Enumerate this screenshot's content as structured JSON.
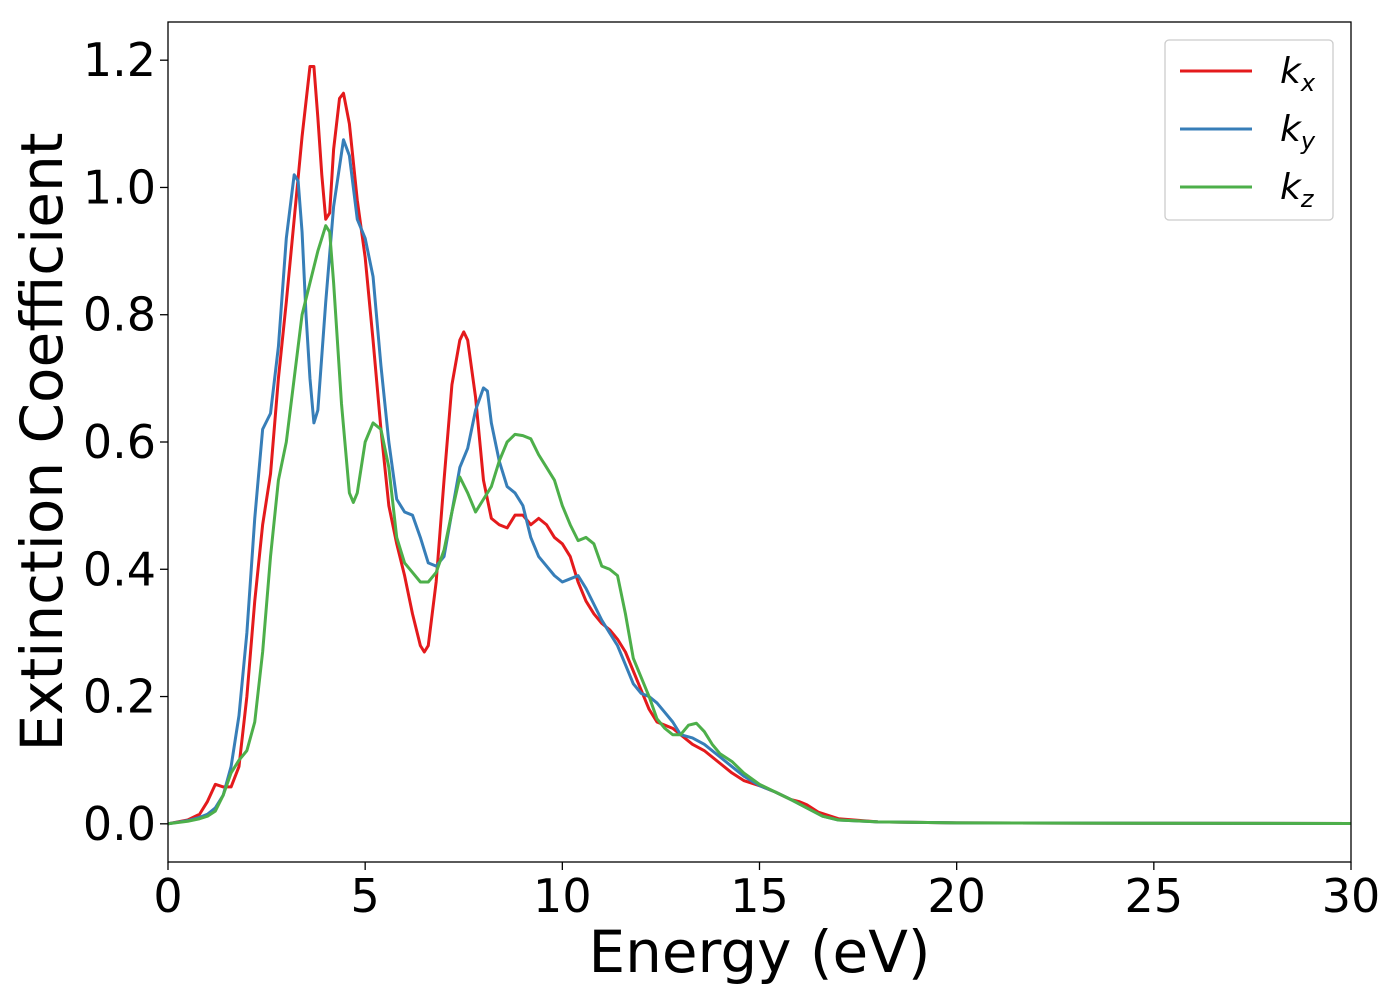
{
  "chart_data": {
    "type": "line",
    "xlabel": "Energy (eV)",
    "ylabel": "Extinction Coefficient",
    "xlim": [
      0,
      30
    ],
    "ylim": [
      -0.06,
      1.26
    ],
    "x_ticks": [
      0,
      5,
      10,
      15,
      20,
      25,
      30
    ],
    "x_tick_labels": [
      "0",
      "5",
      "10",
      "15",
      "20",
      "25",
      "30"
    ],
    "y_ticks": [
      0.0,
      0.2,
      0.4,
      0.6,
      0.8,
      1.0,
      1.2
    ],
    "y_tick_labels": [
      "0.0",
      "0.2",
      "0.4",
      "0.6",
      "0.8",
      "1.0",
      "1.2"
    ],
    "grid": false,
    "legend_position": "top-right",
    "series": [
      {
        "name": "kx",
        "symbol": "k",
        "subscript": "x",
        "color": "#e41a1c",
        "points": [
          [
            0,
            0
          ],
          [
            0.5,
            0.006
          ],
          [
            0.8,
            0.015
          ],
          [
            1.0,
            0.035
          ],
          [
            1.2,
            0.062
          ],
          [
            1.4,
            0.058
          ],
          [
            1.6,
            0.058
          ],
          [
            1.8,
            0.09
          ],
          [
            2.0,
            0.2
          ],
          [
            2.2,
            0.35
          ],
          [
            2.4,
            0.47
          ],
          [
            2.6,
            0.55
          ],
          [
            2.8,
            0.7
          ],
          [
            3.0,
            0.82
          ],
          [
            3.2,
            0.95
          ],
          [
            3.4,
            1.08
          ],
          [
            3.6,
            1.19
          ],
          [
            3.7,
            1.19
          ],
          [
            3.8,
            1.11
          ],
          [
            3.9,
            1.02
          ],
          [
            4.0,
            0.95
          ],
          [
            4.1,
            0.96
          ],
          [
            4.2,
            1.06
          ],
          [
            4.35,
            1.14
          ],
          [
            4.45,
            1.148
          ],
          [
            4.6,
            1.1
          ],
          [
            4.8,
            0.98
          ],
          [
            5.0,
            0.89
          ],
          [
            5.2,
            0.76
          ],
          [
            5.4,
            0.62
          ],
          [
            5.6,
            0.5
          ],
          [
            5.8,
            0.44
          ],
          [
            6.0,
            0.39
          ],
          [
            6.2,
            0.33
          ],
          [
            6.4,
            0.28
          ],
          [
            6.5,
            0.27
          ],
          [
            6.6,
            0.28
          ],
          [
            6.8,
            0.38
          ],
          [
            7.0,
            0.54
          ],
          [
            7.2,
            0.69
          ],
          [
            7.4,
            0.76
          ],
          [
            7.5,
            0.773
          ],
          [
            7.6,
            0.76
          ],
          [
            7.8,
            0.67
          ],
          [
            8.0,
            0.54
          ],
          [
            8.2,
            0.48
          ],
          [
            8.4,
            0.47
          ],
          [
            8.6,
            0.465
          ],
          [
            8.8,
            0.485
          ],
          [
            9.0,
            0.485
          ],
          [
            9.2,
            0.47
          ],
          [
            9.4,
            0.48
          ],
          [
            9.6,
            0.47
          ],
          [
            9.8,
            0.45
          ],
          [
            10.0,
            0.44
          ],
          [
            10.2,
            0.42
          ],
          [
            10.4,
            0.38
          ],
          [
            10.6,
            0.35
          ],
          [
            10.8,
            0.33
          ],
          [
            11.0,
            0.315
          ],
          [
            11.2,
            0.305
          ],
          [
            11.4,
            0.29
          ],
          [
            11.6,
            0.27
          ],
          [
            11.8,
            0.24
          ],
          [
            12.0,
            0.21
          ],
          [
            12.2,
            0.18
          ],
          [
            12.4,
            0.16
          ],
          [
            12.6,
            0.155
          ],
          [
            12.8,
            0.15
          ],
          [
            13.0,
            0.14
          ],
          [
            13.3,
            0.125
          ],
          [
            13.6,
            0.115
          ],
          [
            14.0,
            0.095
          ],
          [
            14.3,
            0.08
          ],
          [
            14.6,
            0.068
          ],
          [
            15.0,
            0.06
          ],
          [
            15.4,
            0.05
          ],
          [
            15.8,
            0.038
          ],
          [
            16.0,
            0.035
          ],
          [
            16.2,
            0.03
          ],
          [
            16.5,
            0.018
          ],
          [
            17.0,
            0.008
          ],
          [
            18.0,
            0.003
          ],
          [
            20.0,
            0.0015
          ],
          [
            25.0,
            0.0008
          ],
          [
            30.0,
            0.0005
          ]
        ]
      },
      {
        "name": "ky",
        "symbol": "k",
        "subscript": "y",
        "color": "#377eb8",
        "points": [
          [
            0,
            0
          ],
          [
            0.5,
            0.005
          ],
          [
            0.8,
            0.01
          ],
          [
            1.0,
            0.015
          ],
          [
            1.2,
            0.025
          ],
          [
            1.4,
            0.045
          ],
          [
            1.6,
            0.09
          ],
          [
            1.8,
            0.17
          ],
          [
            2.0,
            0.3
          ],
          [
            2.2,
            0.48
          ],
          [
            2.4,
            0.62
          ],
          [
            2.6,
            0.645
          ],
          [
            2.8,
            0.75
          ],
          [
            3.0,
            0.92
          ],
          [
            3.2,
            1.02
          ],
          [
            3.3,
            1.01
          ],
          [
            3.4,
            0.93
          ],
          [
            3.5,
            0.8
          ],
          [
            3.6,
            0.7
          ],
          [
            3.7,
            0.63
          ],
          [
            3.8,
            0.65
          ],
          [
            4.0,
            0.82
          ],
          [
            4.2,
            0.97
          ],
          [
            4.45,
            1.075
          ],
          [
            4.6,
            1.05
          ],
          [
            4.8,
            0.95
          ],
          [
            5.0,
            0.92
          ],
          [
            5.2,
            0.86
          ],
          [
            5.4,
            0.72
          ],
          [
            5.6,
            0.6
          ],
          [
            5.8,
            0.51
          ],
          [
            6.0,
            0.49
          ],
          [
            6.2,
            0.485
          ],
          [
            6.4,
            0.45
          ],
          [
            6.6,
            0.41
          ],
          [
            6.8,
            0.405
          ],
          [
            7.0,
            0.42
          ],
          [
            7.2,
            0.49
          ],
          [
            7.4,
            0.56
          ],
          [
            7.6,
            0.59
          ],
          [
            7.8,
            0.65
          ],
          [
            8.0,
            0.685
          ],
          [
            8.1,
            0.68
          ],
          [
            8.2,
            0.63
          ],
          [
            8.4,
            0.57
          ],
          [
            8.6,
            0.53
          ],
          [
            8.8,
            0.52
          ],
          [
            9.0,
            0.5
          ],
          [
            9.2,
            0.45
          ],
          [
            9.4,
            0.42
          ],
          [
            9.6,
            0.405
          ],
          [
            9.8,
            0.39
          ],
          [
            10.0,
            0.38
          ],
          [
            10.2,
            0.385
          ],
          [
            10.4,
            0.39
          ],
          [
            10.6,
            0.37
          ],
          [
            10.8,
            0.345
          ],
          [
            11.0,
            0.32
          ],
          [
            11.2,
            0.3
          ],
          [
            11.4,
            0.28
          ],
          [
            11.6,
            0.25
          ],
          [
            11.8,
            0.22
          ],
          [
            12.0,
            0.205
          ],
          [
            12.2,
            0.2
          ],
          [
            12.4,
            0.19
          ],
          [
            12.6,
            0.175
          ],
          [
            12.8,
            0.16
          ],
          [
            13.0,
            0.14
          ],
          [
            13.3,
            0.135
          ],
          [
            13.6,
            0.125
          ],
          [
            14.0,
            0.105
          ],
          [
            14.3,
            0.09
          ],
          [
            14.6,
            0.075
          ],
          [
            15.0,
            0.06
          ],
          [
            15.4,
            0.05
          ],
          [
            15.8,
            0.038
          ],
          [
            16.2,
            0.025
          ],
          [
            16.6,
            0.012
          ],
          [
            17.0,
            0.006
          ],
          [
            18.0,
            0.003
          ],
          [
            20.0,
            0.0015
          ],
          [
            25.0,
            0.0008
          ],
          [
            30.0,
            0.0005
          ]
        ]
      },
      {
        "name": "kz",
        "symbol": "k",
        "subscript": "z",
        "color": "#4daf4a",
        "points": [
          [
            0,
            0
          ],
          [
            0.5,
            0.004
          ],
          [
            0.8,
            0.008
          ],
          [
            1.0,
            0.012
          ],
          [
            1.2,
            0.02
          ],
          [
            1.4,
            0.045
          ],
          [
            1.6,
            0.08
          ],
          [
            1.8,
            0.1
          ],
          [
            2.0,
            0.115
          ],
          [
            2.2,
            0.16
          ],
          [
            2.4,
            0.27
          ],
          [
            2.6,
            0.42
          ],
          [
            2.8,
            0.54
          ],
          [
            3.0,
            0.6
          ],
          [
            3.2,
            0.7
          ],
          [
            3.4,
            0.8
          ],
          [
            3.6,
            0.85
          ],
          [
            3.8,
            0.9
          ],
          [
            4.0,
            0.94
          ],
          [
            4.1,
            0.93
          ],
          [
            4.2,
            0.85
          ],
          [
            4.4,
            0.66
          ],
          [
            4.6,
            0.52
          ],
          [
            4.7,
            0.505
          ],
          [
            4.8,
            0.52
          ],
          [
            5.0,
            0.6
          ],
          [
            5.2,
            0.63
          ],
          [
            5.4,
            0.62
          ],
          [
            5.6,
            0.56
          ],
          [
            5.8,
            0.45
          ],
          [
            6.0,
            0.41
          ],
          [
            6.2,
            0.395
          ],
          [
            6.4,
            0.38
          ],
          [
            6.6,
            0.38
          ],
          [
            6.8,
            0.395
          ],
          [
            7.0,
            0.43
          ],
          [
            7.2,
            0.49
          ],
          [
            7.4,
            0.545
          ],
          [
            7.6,
            0.52
          ],
          [
            7.8,
            0.49
          ],
          [
            8.0,
            0.51
          ],
          [
            8.2,
            0.53
          ],
          [
            8.4,
            0.57
          ],
          [
            8.6,
            0.6
          ],
          [
            8.8,
            0.612
          ],
          [
            9.0,
            0.61
          ],
          [
            9.2,
            0.605
          ],
          [
            9.4,
            0.58
          ],
          [
            9.6,
            0.56
          ],
          [
            9.8,
            0.54
          ],
          [
            10.0,
            0.5
          ],
          [
            10.2,
            0.47
          ],
          [
            10.4,
            0.445
          ],
          [
            10.6,
            0.45
          ],
          [
            10.8,
            0.44
          ],
          [
            11.0,
            0.405
          ],
          [
            11.2,
            0.4
          ],
          [
            11.4,
            0.39
          ],
          [
            11.6,
            0.33
          ],
          [
            11.8,
            0.26
          ],
          [
            12.0,
            0.23
          ],
          [
            12.2,
            0.2
          ],
          [
            12.4,
            0.165
          ],
          [
            12.6,
            0.15
          ],
          [
            12.8,
            0.14
          ],
          [
            13.0,
            0.14
          ],
          [
            13.2,
            0.155
          ],
          [
            13.4,
            0.158
          ],
          [
            13.6,
            0.145
          ],
          [
            13.8,
            0.125
          ],
          [
            14.0,
            0.11
          ],
          [
            14.3,
            0.098
          ],
          [
            14.6,
            0.08
          ],
          [
            15.0,
            0.062
          ],
          [
            15.4,
            0.05
          ],
          [
            15.8,
            0.038
          ],
          [
            16.2,
            0.025
          ],
          [
            16.6,
            0.012
          ],
          [
            17.0,
            0.006
          ],
          [
            18.0,
            0.003
          ],
          [
            20.0,
            0.0015
          ],
          [
            25.0,
            0.0008
          ],
          [
            30.0,
            0.0005
          ]
        ]
      }
    ]
  }
}
